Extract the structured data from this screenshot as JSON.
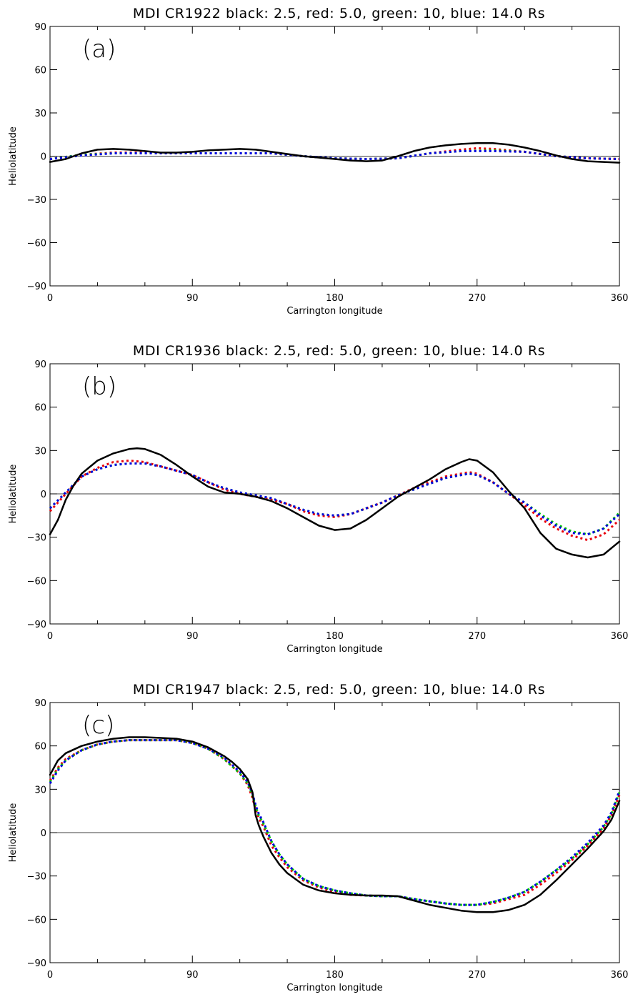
{
  "chart_data": [
    {
      "type": "line",
      "title": "MDI CR1922 black: 2.5, red: 5.0, green: 10, blue: 14.0 Rs",
      "panel_label": "(a)",
      "xlabel": "Carrington longitude",
      "ylabel": "Heliolatitude",
      "xlim": [
        0,
        360
      ],
      "ylim": [
        -90,
        90
      ],
      "xticks": [
        0,
        90,
        180,
        270,
        360
      ],
      "yticks": [
        -90,
        -60,
        -30,
        0,
        30,
        60,
        90
      ],
      "xtick_labels": [
        "0",
        "90",
        "180",
        "270",
        "360"
      ],
      "ytick_labels": [
        "-90",
        "-60",
        "-30",
        "0",
        "30",
        "60",
        "90"
      ],
      "colors": {
        "black": "#000000",
        "red": "#e8000b",
        "green": "#00c800",
        "blue": "#0000e0"
      },
      "series": [
        {
          "color": "black",
          "style": "solid",
          "x": [
            0,
            10,
            20,
            30,
            40,
            50,
            60,
            70,
            80,
            90,
            100,
            110,
            120,
            130,
            140,
            150,
            160,
            170,
            180,
            190,
            200,
            210,
            220,
            230,
            240,
            250,
            260,
            270,
            280,
            290,
            300,
            310,
            320,
            330,
            340,
            350,
            360
          ],
          "y": [
            -4,
            -2,
            2,
            4.5,
            5,
            4.5,
            3.5,
            2.5,
            2.5,
            3,
            4,
            4.5,
            5,
            4.5,
            3,
            1.5,
            0,
            -1,
            -2,
            -3,
            -3.5,
            -3,
            0,
            3.5,
            6,
            7.5,
            8.5,
            9,
            9,
            8,
            6,
            3.5,
            0.5,
            -2,
            -3.5,
            -4,
            -4.5
          ]
        },
        {
          "color": "red",
          "style": "dotted",
          "x": [
            0,
            20,
            40,
            60,
            80,
            100,
            120,
            140,
            160,
            180,
            200,
            220,
            240,
            260,
            270,
            280,
            300,
            320,
            340,
            360
          ],
          "y": [
            -2,
            1,
            2.5,
            2.5,
            2,
            2,
            2,
            2,
            0,
            -1.5,
            -2,
            -1.5,
            2,
            4.5,
            5.5,
            5,
            3,
            0,
            -1.5,
            -2
          ]
        },
        {
          "color": "green",
          "style": "dotted",
          "x": [
            0,
            20,
            40,
            60,
            80,
            100,
            120,
            140,
            160,
            180,
            200,
            220,
            240,
            260,
            280,
            300,
            320,
            340,
            360
          ],
          "y": [
            -2,
            1,
            2,
            2,
            2,
            2,
            2,
            2,
            0,
            -1.5,
            -2,
            -1.5,
            2,
            3.5,
            4,
            3,
            0,
            -1.5,
            -2
          ]
        },
        {
          "color": "blue",
          "style": "dotted",
          "x": [
            0,
            20,
            40,
            60,
            80,
            100,
            120,
            140,
            160,
            180,
            200,
            220,
            240,
            260,
            280,
            300,
            320,
            340,
            360
          ],
          "y": [
            -2,
            0.5,
            2,
            2,
            2,
            2,
            2,
            2,
            0,
            -1.5,
            -2,
            -1.5,
            2,
            3.5,
            3.5,
            3,
            0,
            -1.5,
            -2
          ]
        }
      ]
    },
    {
      "type": "line",
      "title": "MDI CR1936 black: 2.5, red: 5.0, green: 10, blue: 14.0 Rs",
      "panel_label": "(b)",
      "xlabel": "Carrington longitude",
      "ylabel": "Heliolatitude",
      "xlim": [
        0,
        360
      ],
      "ylim": [
        -90,
        90
      ],
      "xticks": [
        0,
        90,
        180,
        270,
        360
      ],
      "yticks": [
        -90,
        -60,
        -30,
        0,
        30,
        60,
        90
      ],
      "xtick_labels": [
        "0",
        "90",
        "180",
        "270",
        "360"
      ],
      "ytick_labels": [
        "-90",
        "-60",
        "-30",
        "0",
        "30",
        "60",
        "90"
      ],
      "colors": {
        "black": "#000000",
        "red": "#e8000b",
        "green": "#00c800",
        "blue": "#0000e0"
      },
      "series": [
        {
          "color": "black",
          "style": "solid",
          "x": [
            0,
            5,
            10,
            15,
            20,
            30,
            40,
            50,
            55,
            60,
            70,
            80,
            90,
            100,
            110,
            120,
            130,
            140,
            150,
            160,
            170,
            180,
            190,
            200,
            210,
            220,
            230,
            240,
            250,
            260,
            265,
            270,
            280,
            290,
            300,
            310,
            320,
            330,
            340,
            350,
            360
          ],
          "y": [
            -28,
            -18,
            -4,
            6,
            14,
            23,
            28,
            31,
            31.5,
            31,
            27,
            20,
            12,
            5,
            1,
            0,
            -2,
            -5,
            -10,
            -16,
            -22,
            -25,
            -24,
            -18,
            -10,
            -2,
            4,
            10,
            17,
            22,
            24,
            23,
            15,
            2,
            -10,
            -27,
            -38,
            -42,
            -44,
            -42,
            -33
          ]
        },
        {
          "color": "red",
          "style": "dotted",
          "x": [
            0,
            10,
            20,
            30,
            40,
            50,
            60,
            70,
            80,
            90,
            100,
            110,
            120,
            130,
            140,
            150,
            160,
            170,
            180,
            190,
            200,
            210,
            220,
            230,
            240,
            250,
            260,
            265,
            270,
            280,
            290,
            300,
            310,
            320,
            330,
            340,
            350,
            360
          ],
          "y": [
            -12,
            0,
            12,
            18,
            22,
            23,
            22,
            19,
            16,
            13,
            8,
            3,
            0,
            -2,
            -4,
            -7,
            -12,
            -15,
            -16,
            -14,
            -10,
            -6,
            -1,
            4,
            8,
            12,
            14,
            15,
            14,
            8,
            0,
            -8,
            -17,
            -24,
            -29,
            -32,
            -28,
            -18
          ]
        },
        {
          "color": "green",
          "style": "dotted",
          "x": [
            0,
            10,
            20,
            30,
            40,
            50,
            60,
            70,
            80,
            90,
            100,
            110,
            120,
            130,
            140,
            150,
            160,
            170,
            180,
            190,
            200,
            210,
            220,
            230,
            240,
            250,
            260,
            265,
            270,
            280,
            290,
            300,
            310,
            320,
            330,
            340,
            350,
            360
          ],
          "y": [
            -10,
            1,
            12,
            17,
            20,
            21,
            21,
            19,
            16,
            13,
            8,
            4,
            1,
            -1,
            -3,
            -7,
            -11,
            -14,
            -15,
            -14,
            -10,
            -6,
            -1,
            3,
            7,
            11,
            13,
            14,
            13,
            8,
            0,
            -6,
            -14,
            -21,
            -26,
            -28,
            -24,
            -13
          ]
        },
        {
          "color": "blue",
          "style": "dotted",
          "x": [
            0,
            10,
            20,
            30,
            40,
            50,
            60,
            70,
            80,
            90,
            100,
            110,
            120,
            130,
            140,
            150,
            160,
            170,
            180,
            190,
            200,
            210,
            220,
            230,
            240,
            250,
            260,
            265,
            270,
            280,
            290,
            300,
            310,
            320,
            330,
            340,
            350,
            360
          ],
          "y": [
            -10,
            1,
            12,
            17,
            20,
            21,
            21,
            19,
            16,
            13,
            8,
            4,
            1,
            -1,
            -3,
            -7,
            -11,
            -14,
            -15,
            -14,
            -10,
            -6,
            -1,
            3,
            7,
            11,
            13,
            14,
            13,
            8,
            0,
            -6,
            -15,
            -22,
            -27,
            -28,
            -24,
            -14
          ]
        }
      ]
    },
    {
      "type": "line",
      "title": "MDI CR1947 black: 2.5, red: 5.0, green: 10, blue: 14.0 Rs",
      "panel_label": "(c)",
      "xlabel": "Carrington longitude",
      "ylabel": "Heliolatitude",
      "xlim": [
        0,
        360
      ],
      "ylim": [
        -90,
        90
      ],
      "xticks": [
        0,
        90,
        180,
        270,
        360
      ],
      "yticks": [
        -90,
        -60,
        -30,
        0,
        30,
        60,
        90
      ],
      "xtick_labels": [
        "0",
        "90",
        "180",
        "270",
        "360"
      ],
      "ytick_labels": [
        "-90",
        "-60",
        "-30",
        "0",
        "30",
        "60",
        "90"
      ],
      "colors": {
        "black": "#000000",
        "red": "#e8000b",
        "green": "#00c800",
        "blue": "#0000e0"
      },
      "series": [
        {
          "color": "black",
          "style": "solid",
          "x": [
            0,
            5,
            10,
            20,
            30,
            40,
            50,
            60,
            70,
            80,
            90,
            100,
            110,
            115,
            120,
            125,
            128,
            130,
            132,
            135,
            140,
            145,
            150,
            160,
            170,
            180,
            190,
            200,
            210,
            220,
            230,
            240,
            250,
            260,
            270,
            280,
            290,
            300,
            310,
            320,
            330,
            340,
            350,
            355,
            360
          ],
          "y": [
            40,
            50,
            55,
            60,
            63,
            65,
            66,
            66,
            65.5,
            65,
            63,
            59,
            53,
            49,
            44,
            37,
            28,
            12,
            5,
            -3,
            -14,
            -22,
            -28,
            -36,
            -40,
            -42,
            -43,
            -43.5,
            -43.5,
            -44,
            -47,
            -50,
            -52,
            -54,
            -55,
            -55,
            -53.5,
            -50,
            -43,
            -33,
            -22,
            -11,
            1,
            9,
            22
          ]
        },
        {
          "color": "red",
          "style": "dotted",
          "x": [
            0,
            5,
            10,
            20,
            30,
            40,
            50,
            60,
            70,
            80,
            90,
            100,
            110,
            115,
            120,
            125,
            128,
            130,
            132,
            135,
            140,
            145,
            150,
            160,
            170,
            180,
            190,
            200,
            210,
            220,
            230,
            240,
            250,
            260,
            270,
            280,
            290,
            300,
            310,
            320,
            330,
            340,
            350,
            355,
            360
          ],
          "y": [
            36,
            45,
            51,
            57,
            61,
            63,
            64,
            64,
            64,
            64,
            62,
            58,
            51,
            46,
            41,
            33,
            24,
            16,
            10,
            4,
            -9,
            -17,
            -24,
            -33,
            -38,
            -41,
            -43,
            -43.5,
            -44,
            -44,
            -46,
            -47.5,
            -49,
            -50,
            -50,
            -49,
            -46,
            -43,
            -36,
            -28,
            -19,
            -9,
            3,
            12,
            26
          ]
        },
        {
          "color": "green",
          "style": "dotted",
          "x": [
            0,
            5,
            10,
            20,
            30,
            40,
            50,
            60,
            70,
            80,
            90,
            100,
            110,
            115,
            120,
            125,
            128,
            130,
            132,
            135,
            140,
            145,
            150,
            160,
            170,
            180,
            190,
            200,
            210,
            220,
            230,
            240,
            250,
            260,
            270,
            280,
            290,
            300,
            310,
            320,
            330,
            340,
            350,
            355,
            360
          ],
          "y": [
            35,
            44,
            50,
            57,
            61,
            63,
            64,
            64,
            64,
            64,
            62,
            58,
            51,
            46,
            41,
            34,
            26,
            18,
            12,
            6,
            -6,
            -15,
            -22,
            -32,
            -37,
            -40,
            -42,
            -43.5,
            -44,
            -44,
            -46,
            -47.5,
            -49,
            -50,
            -50,
            -48,
            -45,
            -41,
            -34,
            -26,
            -18,
            -8,
            4,
            13,
            28
          ]
        },
        {
          "color": "blue",
          "style": "dotted",
          "x": [
            0,
            5,
            10,
            20,
            30,
            40,
            50,
            60,
            70,
            80,
            90,
            100,
            110,
            115,
            120,
            125,
            128,
            130,
            132,
            135,
            140,
            145,
            150,
            160,
            170,
            180,
            190,
            200,
            210,
            220,
            230,
            240,
            250,
            260,
            270,
            280,
            290,
            300,
            310,
            320,
            330,
            340,
            350,
            355,
            360
          ],
          "y": [
            34,
            43,
            50,
            57,
            61,
            63,
            64,
            64,
            64,
            64,
            62,
            58,
            52,
            47,
            42,
            35,
            27,
            19,
            13,
            7,
            -6,
            -15,
            -22,
            -32,
            -37,
            -40,
            -42,
            -43.5,
            -44,
            -44,
            -46,
            -47.5,
            -49,
            -50,
            -50,
            -48,
            -45,
            -41,
            -34,
            -26,
            -17,
            -7,
            5,
            14,
            29
          ]
        }
      ]
    }
  ]
}
